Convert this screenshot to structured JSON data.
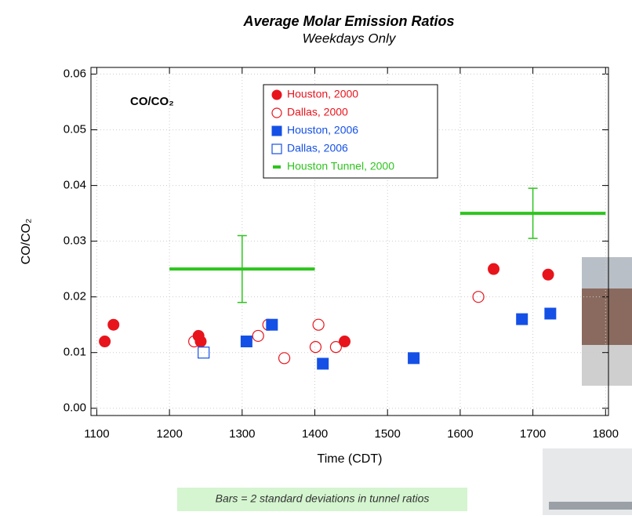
{
  "chart_data": {
    "type": "scatter",
    "title": "Average Molar Emission Ratios",
    "subtitle": "Weekdays Only",
    "x_label": "Time (CDT)",
    "y_label": "CO/CO₂",
    "annotation": "CO/CO₂",
    "footnote": "Bars = 2 standard deviations in tunnel ratios",
    "xlim": [
      1092,
      1804
    ],
    "ylim": [
      -0.0013,
      0.0612
    ],
    "xticks": [
      1100,
      1200,
      1300,
      1400,
      1500,
      1600,
      1700,
      1800
    ],
    "yticks": [
      {
        "value": 0,
        "label": "0.00"
      },
      0.01,
      0.02,
      0.03,
      0.04,
      0.05,
      0.06
    ],
    "series": [
      {
        "name": "Houston, 2000",
        "color": "#e8141c",
        "marker": "circle",
        "filled": true,
        "x": [
          1111,
          1123,
          1240,
          1243,
          1441,
          1646,
          1721
        ],
        "values": [
          0.012,
          0.015,
          0.013,
          0.012,
          0.012,
          0.025,
          0.024
        ]
      },
      {
        "name": "Dallas, 2000",
        "color": "#e8141c",
        "marker": "circle",
        "filled": false,
        "x": [
          1234,
          1322,
          1336,
          1358,
          1405,
          1401,
          1429,
          1625
        ],
        "values": [
          0.012,
          0.013,
          0.015,
          0.009,
          0.015,
          0.011,
          0.011,
          0.02
        ]
      },
      {
        "name": "Houston, 2006",
        "color": "#1450e6",
        "marker": "square",
        "filled": true,
        "x": [
          1306,
          1341,
          1411,
          1536,
          1685,
          1724
        ],
        "values": [
          0.012,
          0.015,
          0.008,
          0.009,
          0.016,
          0.017
        ]
      },
      {
        "name": "Dallas, 2006",
        "color": "#1450e6",
        "marker": "square",
        "filled": false,
        "x": [
          1247
        ],
        "values": [
          0.01
        ]
      },
      {
        "name": "Houston Tunnel, 2000",
        "color": "#2ec41e",
        "marker": "errorbar",
        "filled": true,
        "x": [
          1300,
          1700
        ],
        "values": [
          0.025,
          0.035
        ],
        "errors": [
          0.006,
          0.0045
        ],
        "xerr": [
          100,
          100
        ]
      }
    ]
  }
}
